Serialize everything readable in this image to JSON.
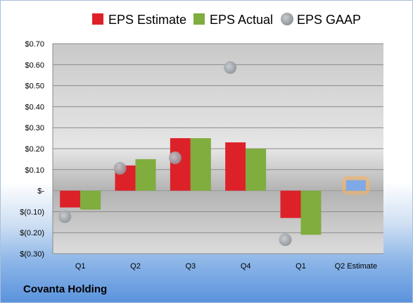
{
  "company": "Covanta Holding",
  "chart_data": {
    "type": "bar",
    "categories": [
      "Q1",
      "Q2",
      "Q3",
      "Q4",
      "Q1",
      "Q2 Estimate"
    ],
    "series": [
      {
        "name": "EPS Estimate",
        "color": "#dd2128",
        "values": [
          -0.08,
          0.12,
          0.25,
          0.23,
          -0.13,
          null
        ]
      },
      {
        "name": "EPS Actual",
        "color": "#7fad3e",
        "values": [
          -0.09,
          0.15,
          0.25,
          0.2,
          -0.21,
          null
        ]
      },
      {
        "name": "EPS GAAP",
        "color": "#a6acb2",
        "marker": "circle",
        "values": [
          -0.09,
          0.14,
          0.19,
          0.62,
          -0.2,
          null
        ]
      }
    ],
    "forecast": {
      "category": "Q2 Estimate",
      "value": 0.05,
      "color": "#7ea9e6",
      "glow": "#f7b260"
    },
    "yticks": [
      0.7,
      0.6,
      0.5,
      0.4,
      0.3,
      0.2,
      0.1,
      0,
      -0.1,
      -0.2,
      -0.3
    ],
    "ytick_labels": [
      "$0.70",
      "$0.60",
      "$0.50",
      "$0.40",
      "$0.30",
      "$0.20",
      "$0.10",
      "$-",
      "$(0.10)",
      "$(0.20)",
      "$(0.30)"
    ],
    "ylim": [
      -0.3,
      0.7
    ],
    "grid": true,
    "legend_position": "top",
    "title": "",
    "xlabel": "",
    "ylabel": ""
  }
}
